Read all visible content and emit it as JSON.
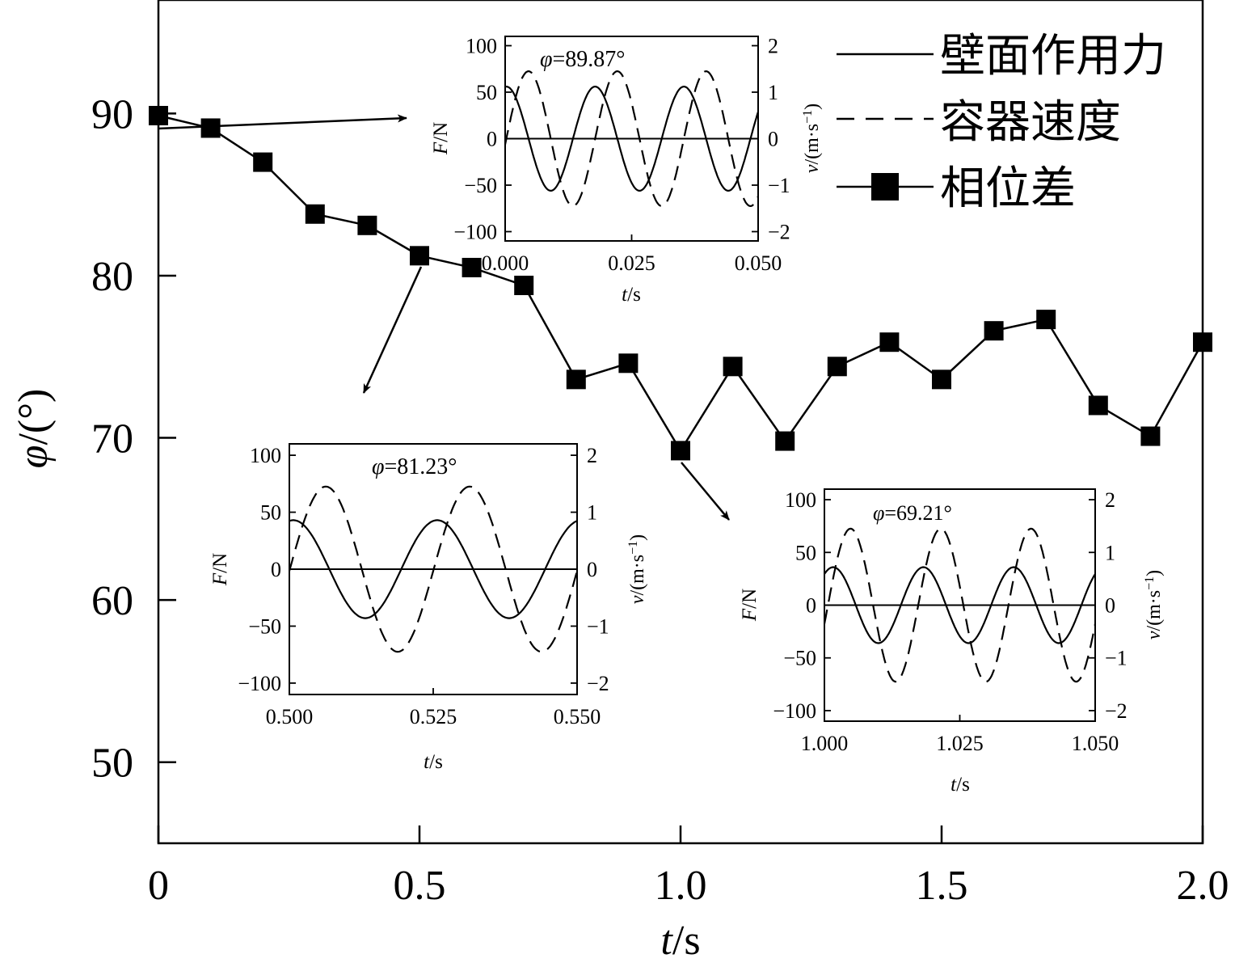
{
  "chart_data": [
    {
      "type": "line",
      "role": "main",
      "xlabel": "t/s",
      "ylabel": "φ/(°)",
      "xlim": [
        0,
        2.0
      ],
      "ylim": [
        45,
        97
      ],
      "xticks": [
        "0",
        "0.5",
        "1.0",
        "1.5",
        "2.0"
      ],
      "xtick_values": [
        0,
        0.5,
        1.0,
        1.5,
        2.0
      ],
      "yticks": [
        "50",
        "60",
        "70",
        "80",
        "90"
      ],
      "ytick_values": [
        50,
        60,
        70,
        80,
        90
      ],
      "grid": false,
      "legend_position": "top-right",
      "legend": [
        {
          "label": "壁面作用力",
          "style": "solid"
        },
        {
          "label": "容器速度",
          "style": "dashed"
        },
        {
          "label": "相位差",
          "style": "solid-square-marker"
        }
      ],
      "series": [
        {
          "name": "相位差",
          "marker": "square",
          "x": [
            0.0,
            0.1,
            0.2,
            0.3,
            0.4,
            0.5,
            0.6,
            0.7,
            0.8,
            0.9,
            1.0,
            1.1,
            1.2,
            1.3,
            1.4,
            1.5,
            1.6,
            1.7,
            1.8,
            1.9,
            2.0
          ],
          "y": [
            89.87,
            89.1,
            87.0,
            83.8,
            83.1,
            81.23,
            80.5,
            79.4,
            73.6,
            74.6,
            69.21,
            74.4,
            69.8,
            74.4,
            75.9,
            73.6,
            76.6,
            77.3,
            72.0,
            70.1,
            75.9
          ]
        }
      ]
    },
    {
      "type": "line",
      "role": "inset",
      "annotation": "φ=89.87°",
      "annotation_symbol": "φ",
      "annotation_value": "=89.87°",
      "xlabel": "t/s",
      "ylabel_left": "F/N",
      "ylabel_right": "v/(m·s⁻¹)",
      "xlim": [
        0.0,
        0.05
      ],
      "ylim_left": [
        -110,
        110
      ],
      "ylim_right": [
        -2.2,
        2.2
      ],
      "xticks": [
        "0.000",
        "0.025",
        "0.050"
      ],
      "yticks_left": [
        "100",
        "50",
        "0",
        "−50",
        "−100"
      ],
      "yticks_right": [
        "2",
        "1",
        "0",
        "−1",
        "−2"
      ],
      "series": [
        {
          "style": "solid",
          "axis": "left",
          "amplitude": 56,
          "frequency_hz": 57,
          "phase_deg": 85
        },
        {
          "style": "dashed",
          "axis": "right",
          "amplitude": 1.45,
          "frequency_hz": 57,
          "phase_deg": -4.87
        }
      ]
    },
    {
      "type": "line",
      "role": "inset",
      "annotation": "φ=81.23°",
      "annotation_symbol": "φ",
      "annotation_value": "=81.23°",
      "xlabel": "t/s",
      "ylabel_left": "F/N",
      "ylabel_right": "v/(m·s⁻¹)",
      "xlim": [
        0.5,
        0.55
      ],
      "ylim_left": [
        -110,
        110
      ],
      "ylim_right": [
        -2.2,
        2.2
      ],
      "xticks": [
        "0.500",
        "0.525",
        "0.550"
      ],
      "yticks_left": [
        "100",
        "50",
        "0",
        "−50",
        "−100"
      ],
      "yticks_right": [
        "2",
        "1",
        "0",
        "−1",
        "−2"
      ],
      "series": [
        {
          "style": "solid",
          "axis": "left",
          "amplitude": 43,
          "frequency_hz": 40,
          "phase_deg": 80
        },
        {
          "style": "dashed",
          "axis": "right",
          "amplitude": 1.45,
          "frequency_hz": 40,
          "phase_deg": -1.23
        }
      ]
    },
    {
      "type": "line",
      "role": "inset",
      "annotation": "φ=69.21°",
      "annotation_symbol": "φ",
      "annotation_value": "=69.21°",
      "xlabel": "t/s",
      "ylabel_left": "F/N",
      "ylabel_right": "v/(m·s⁻¹)",
      "xlim": [
        1.0,
        1.05
      ],
      "ylim_left": [
        -110,
        110
      ],
      "ylim_right": [
        -2.2,
        2.2
      ],
      "xticks": [
        "1.000",
        "1.025",
        "1.050"
      ],
      "yticks_left": [
        "100",
        "50",
        "0",
        "−50",
        "−100"
      ],
      "yticks_right": [
        "2",
        "1",
        "0",
        "−1",
        "−2"
      ],
      "series": [
        {
          "style": "solid",
          "axis": "left",
          "amplitude": 36,
          "frequency_hz": 60,
          "phase_deg": 55
        },
        {
          "style": "dashed",
          "axis": "right",
          "amplitude": 1.45,
          "frequency_hz": 60,
          "phase_deg": -14.21
        }
      ]
    }
  ]
}
